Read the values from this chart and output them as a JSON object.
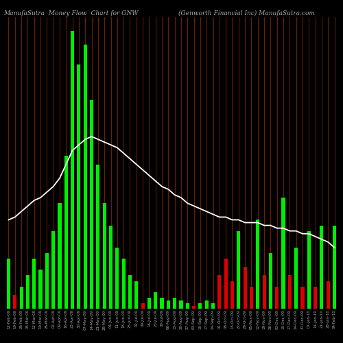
{
  "title_left": "ManufaSutra  Money Flow  Chart for GNW",
  "title_right": "(Genworth Financial Inc) ManufaSutra.com",
  "background_color": "#000000",
  "categories": [
    "12-Feb-09",
    "19-Feb-09",
    "26-Feb-09",
    "05-Mar-09",
    "12-Mar-09",
    "19-Mar-09",
    "26-Mar-09",
    "02-Apr-09",
    "09-Apr-09",
    "16-Apr-09",
    "23-Apr-09",
    "30-Apr-09",
    "07-May-09",
    "14-May-09",
    "21-May-09",
    "28-May-09",
    "04-Jun-09",
    "11-Jun-09",
    "18-Jun-09",
    "25-Jun-09",
    "02-Jul-09",
    "09-Jul-09",
    "16-Jul-09",
    "23-Jul-09",
    "30-Jul-09",
    "06-Aug-09",
    "13-Aug-09",
    "20-Aug-09",
    "27-Aug-09",
    "03-Sep-09",
    "10-Sep-09",
    "17-Sep-09",
    "24-Sep-09",
    "01-Oct-09",
    "08-Oct-09",
    "15-Oct-09",
    "22-Oct-09",
    "29-Oct-09",
    "05-Nov-09",
    "12-Nov-09",
    "19-Nov-09",
    "26-Nov-09",
    "03-Dec-09",
    "10-Dec-09",
    "17-Dec-09",
    "24-Dec-09",
    "31-Dec-09",
    "07-Jan-10",
    "14-Jan-10",
    "21-Jan-10",
    "28-Jan-10",
    "04-Feb-10"
  ],
  "bar_heights": [
    18,
    5,
    8,
    12,
    18,
    14,
    20,
    28,
    38,
    55,
    100,
    88,
    95,
    75,
    52,
    38,
    30,
    22,
    18,
    12,
    10,
    2,
    4,
    6,
    4,
    3,
    4,
    3,
    2,
    1,
    2,
    3,
    2,
    12,
    18,
    10,
    28,
    15,
    8,
    32,
    12,
    20,
    8,
    40,
    12,
    22,
    8,
    28,
    8,
    30,
    10,
    30
  ],
  "bar_colors": [
    "#00ee00",
    "#dd0000",
    "#00ee00",
    "#00ee00",
    "#00ee00",
    "#00ee00",
    "#00ee00",
    "#00ee00",
    "#00ee00",
    "#00ee00",
    "#00ee00",
    "#00ee00",
    "#00ee00",
    "#00ee00",
    "#00ee00",
    "#00ee00",
    "#00ee00",
    "#00ee00",
    "#00ee00",
    "#00ee00",
    "#00ee00",
    "#dd0000",
    "#00ee00",
    "#00ee00",
    "#00ee00",
    "#00ee00",
    "#00ee00",
    "#00ee00",
    "#00ee00",
    "#dd0000",
    "#00ee00",
    "#00ee00",
    "#00ee00",
    "#dd0000",
    "#dd0000",
    "#dd0000",
    "#00ee00",
    "#dd0000",
    "#dd0000",
    "#00ee00",
    "#dd0000",
    "#00ee00",
    "#dd0000",
    "#00ee00",
    "#dd0000",
    "#00ee00",
    "#dd0000",
    "#00ee00",
    "#dd0000",
    "#00ee00",
    "#dd0000",
    "#00ee00"
  ],
  "line_y": [
    32,
    33,
    35,
    37,
    39,
    40,
    42,
    44,
    47,
    52,
    57,
    59,
    61,
    62,
    61,
    60,
    59,
    58,
    56,
    54,
    52,
    50,
    48,
    46,
    44,
    43,
    41,
    40,
    38,
    37,
    36,
    35,
    34,
    33,
    33,
    32,
    32,
    31,
    31,
    31,
    30,
    30,
    29,
    29,
    28,
    28,
    27,
    27,
    26,
    25,
    24,
    22
  ],
  "vline_color": "#882200",
  "line_color": "#ffffff",
  "title_color": "#aaaaaa",
  "title_fontsize": 6.5,
  "tick_fontsize": 4.0
}
